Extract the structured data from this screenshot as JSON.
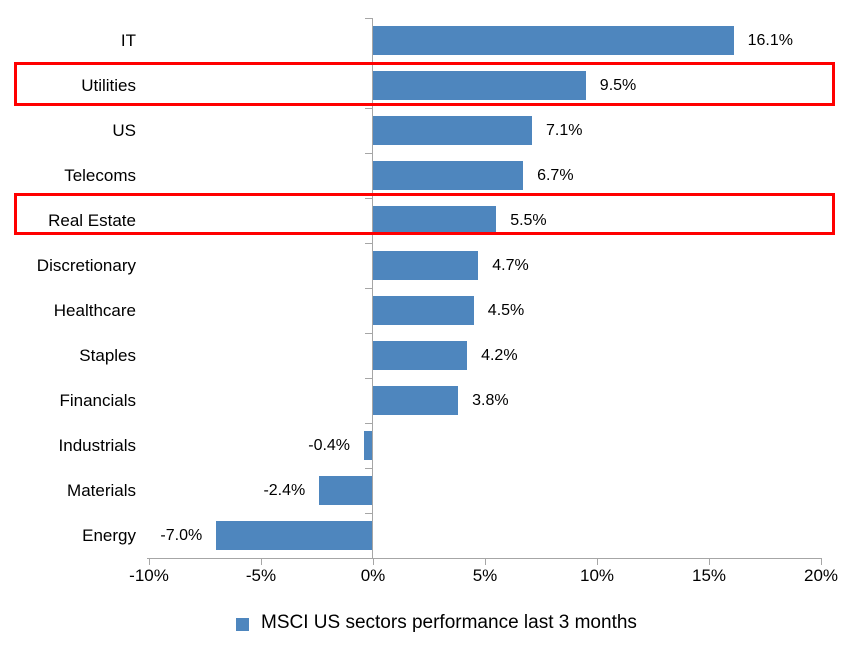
{
  "chart_data": {
    "type": "bar",
    "orientation": "horizontal",
    "title": "",
    "xlabel": "",
    "ylabel": "",
    "categories": [
      "IT",
      "Utilities",
      "US",
      "Telecoms",
      "Real Estate",
      "Discretionary",
      "Healthcare",
      "Staples",
      "Financials",
      "Industrials",
      "Materials",
      "Energy"
    ],
    "values": [
      16.1,
      9.5,
      7.1,
      6.7,
      5.5,
      4.7,
      4.5,
      4.2,
      3.8,
      -0.4,
      -2.4,
      -7.0
    ],
    "value_labels": [
      "16.1%",
      "9.5%",
      "7.1%",
      "6.7%",
      "5.5%",
      "4.7%",
      "4.5%",
      "4.2%",
      "3.8%",
      "-0.4%",
      "-2.4%",
      "-7.0%"
    ],
    "x_tick_labels": [
      "-10%",
      "-5%",
      "0%",
      "5%",
      "10%",
      "15%",
      "20%"
    ],
    "x_tick_values": [
      -10,
      -5,
      0,
      5,
      10,
      15,
      20
    ],
    "xlim": [
      -10,
      20
    ],
    "grid": "off",
    "legend": "MSCI US sectors performance last 3 months",
    "legend_position": "bottom",
    "legend_marker": "square",
    "bar_color": "#4e86be",
    "axis_color": "#a6a6a6",
    "text_color": "#000000",
    "highlight_color": "#ff0000",
    "highlighted_categories": [
      "Utilities",
      "Real Estate"
    ]
  }
}
